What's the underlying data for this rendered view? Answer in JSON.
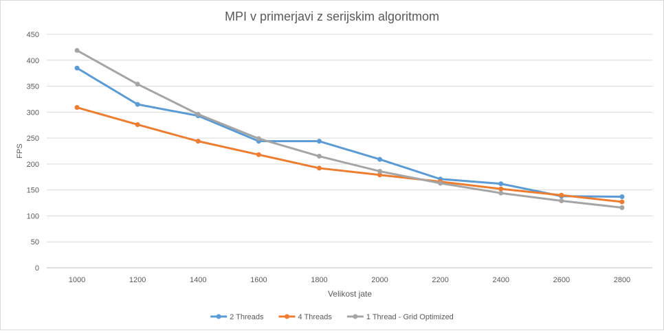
{
  "chart_data": {
    "type": "line",
    "title": "MPI v primerjavi z serijskim algoritmom",
    "xlabel": "Velikost jate",
    "ylabel": "FPS",
    "categories": [
      "1000",
      "1200",
      "1400",
      "1600",
      "1800",
      "2000",
      "2200",
      "2400",
      "2600",
      "2800"
    ],
    "ylim": [
      0,
      450
    ],
    "yticks": [
      "0",
      "50",
      "100",
      "150",
      "200",
      "250",
      "300",
      "350",
      "400",
      "450"
    ],
    "grid": true,
    "legend_position": "bottom",
    "series": [
      {
        "name": "2 Threads",
        "color": "#5b9bd5",
        "values": [
          385,
          315,
          293,
          244,
          244,
          209,
          171,
          162,
          138,
          137
        ]
      },
      {
        "name": "4 Threads",
        "color": "#ed7d31",
        "values": [
          309,
          276,
          244,
          218,
          192,
          179,
          166,
          152,
          140,
          127
        ]
      },
      {
        "name": "1 Thread - Grid Optimized",
        "color": "#a5a5a5",
        "values": [
          419,
          354,
          296,
          249,
          215,
          186,
          163,
          144,
          129,
          116
        ]
      }
    ]
  }
}
